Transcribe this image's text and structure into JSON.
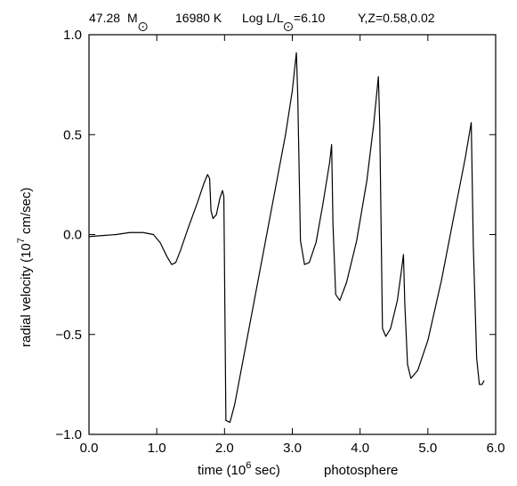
{
  "chart_data": {
    "type": "line",
    "title": {
      "mass": "47.28",
      "mass_unit": "M",
      "temperature": "16980 K",
      "lum_prefix": "Log L/L",
      "lum_value": "=6.10",
      "composition": "Y,Z=0.58,0.02"
    },
    "xlabel": {
      "prefix": "time (10",
      "exponent": "6",
      "suffix": " sec)",
      "note": "photosphere"
    },
    "ylabel": {
      "prefix": "radial velocity (10",
      "exponent": "7",
      "suffix": " cm/sec)"
    },
    "xlim": [
      0.0,
      6.0
    ],
    "ylim": [
      -1.0,
      1.0
    ],
    "x_ticks": [
      0.0,
      1.0,
      2.0,
      3.0,
      4.0,
      5.0,
      6.0
    ],
    "x_tick_labels": [
      "0.0",
      "1.0",
      "2.0",
      "3.0",
      "4.0",
      "5.0",
      "6.0"
    ],
    "y_ticks": [
      -1.0,
      -0.5,
      0.0,
      0.5,
      1.0
    ],
    "y_tick_labels": [
      "−1.0",
      "−0.5",
      "0.0",
      "0.5",
      "1.0"
    ],
    "grid": false,
    "legend": "none",
    "colors": {
      "line": "#000000",
      "axes": "#000000",
      "background": "#ffffff"
    },
    "series": [
      {
        "x": [
          0.0,
          0.2,
          0.4,
          0.6,
          0.8,
          0.95,
          1.05,
          1.15,
          1.22,
          1.28,
          1.35,
          1.45,
          1.6,
          1.7,
          1.75,
          1.78,
          1.8,
          1.83,
          1.88,
          1.93,
          1.97,
          1.99,
          2.02,
          2.08,
          2.15,
          2.3,
          2.5,
          2.7,
          2.9,
          3.0,
          3.06,
          3.08,
          3.12,
          3.18,
          3.25,
          3.35,
          3.45,
          3.55,
          3.58,
          3.6,
          3.64,
          3.7,
          3.8,
          3.95,
          4.1,
          4.2,
          4.27,
          4.29,
          4.33,
          4.38,
          4.45,
          4.55,
          4.61,
          4.64,
          4.66,
          4.7,
          4.75,
          4.85,
          5.0,
          5.2,
          5.4,
          5.55,
          5.64,
          5.67,
          5.72,
          5.76,
          5.8,
          5.83
        ],
        "y": [
          -0.01,
          -0.005,
          0.0,
          0.01,
          0.01,
          0.0,
          -0.04,
          -0.11,
          -0.15,
          -0.14,
          -0.08,
          0.02,
          0.16,
          0.26,
          0.3,
          0.28,
          0.12,
          0.08,
          0.1,
          0.18,
          0.22,
          0.19,
          -0.93,
          -0.94,
          -0.85,
          -0.58,
          -0.22,
          0.14,
          0.5,
          0.72,
          0.91,
          0.7,
          -0.03,
          -0.15,
          -0.14,
          -0.04,
          0.15,
          0.36,
          0.45,
          0.05,
          -0.3,
          -0.33,
          -0.24,
          -0.03,
          0.27,
          0.55,
          0.79,
          0.55,
          -0.47,
          -0.51,
          -0.47,
          -0.33,
          -0.18,
          -0.1,
          -0.35,
          -0.65,
          -0.72,
          -0.68,
          -0.53,
          -0.23,
          0.12,
          0.38,
          0.56,
          -0.05,
          -0.62,
          -0.75,
          -0.75,
          -0.73
        ]
      }
    ]
  }
}
